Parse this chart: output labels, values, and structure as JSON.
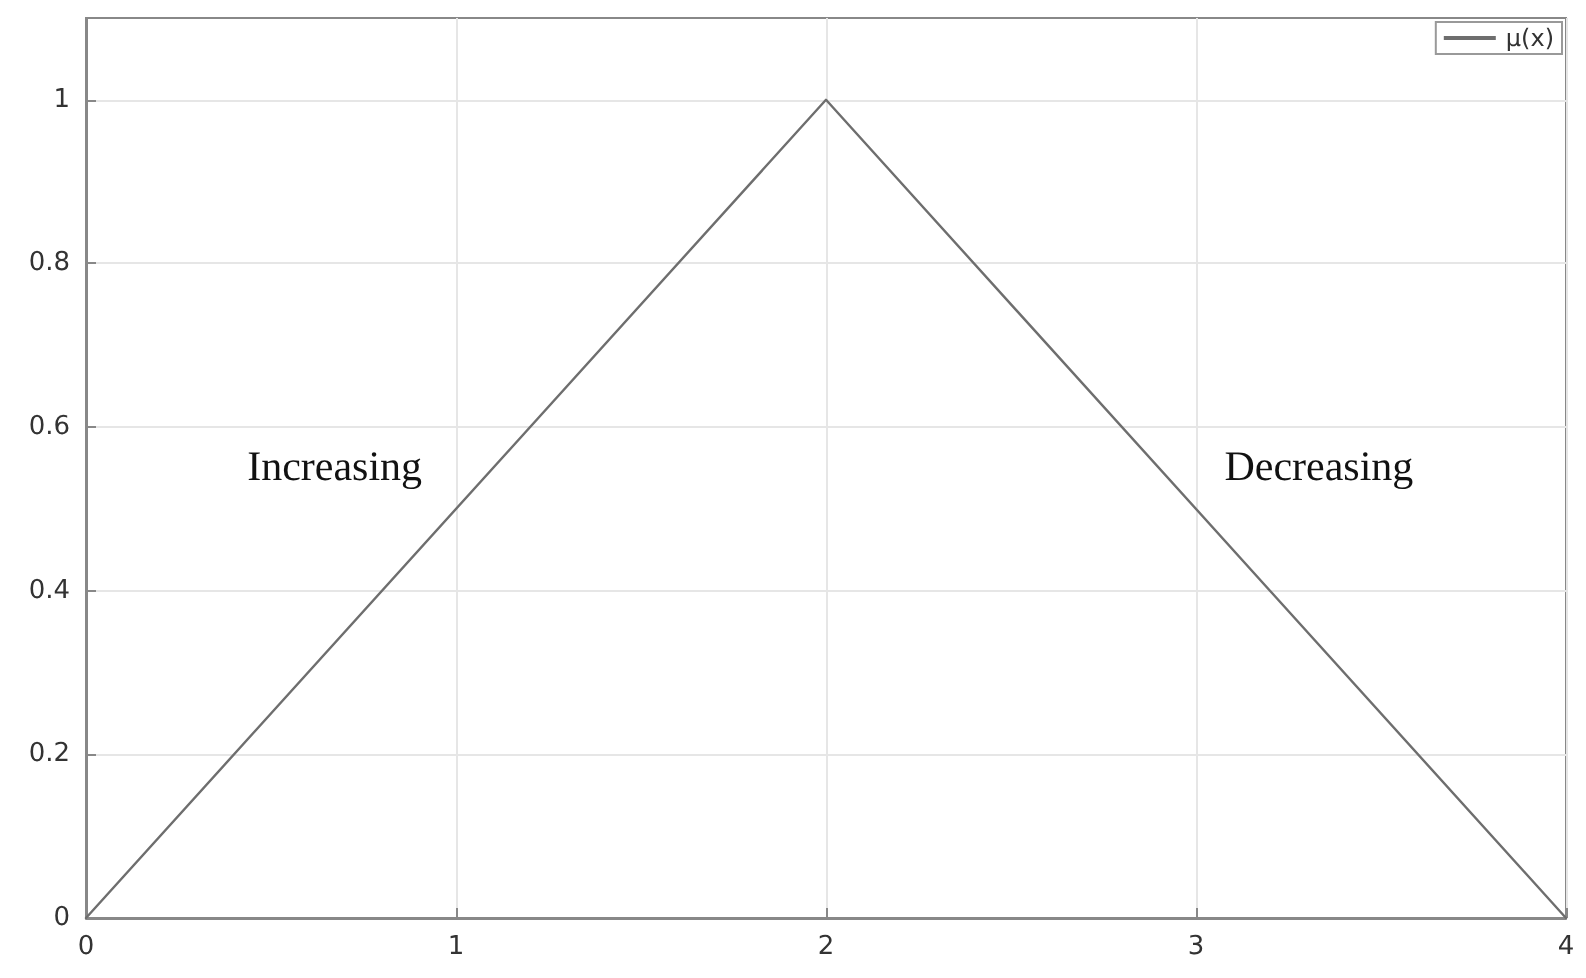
{
  "chart_data": {
    "type": "line",
    "x": [
      0,
      2,
      4
    ],
    "series": [
      {
        "name": "μ(x)",
        "color": "#6e6e6e",
        "values": [
          0,
          1,
          0
        ]
      }
    ],
    "xlim": [
      0,
      4
    ],
    "xticks": [
      0,
      1,
      2,
      3,
      4
    ],
    "ylim": [
      0,
      1.1
    ],
    "yticks": [
      0,
      0.2,
      0.4,
      0.6,
      0.8,
      1
    ],
    "grid": true,
    "legend": "top right",
    "marker": "none",
    "line_style": "solid",
    "annotations": [
      "Increasing",
      "Decreasing"
    ]
  }
}
